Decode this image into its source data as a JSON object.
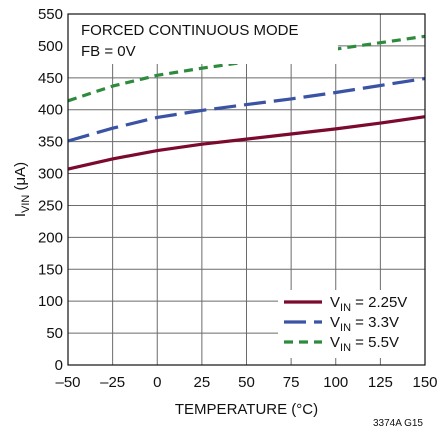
{
  "chart_data": {
    "type": "line",
    "xlabel": "TEMPERATURE (°C)",
    "ylabel": {
      "main": "I",
      "sub": "VIN",
      "unit": " (μA)"
    },
    "xlim": [
      -50,
      150
    ],
    "ylim": [
      0,
      550
    ],
    "x_ticks": [
      -50,
      -25,
      0,
      25,
      50,
      75,
      100,
      125,
      150
    ],
    "x_tick_labels": [
      "–50",
      "–25",
      "0",
      "25",
      "50",
      "75",
      "100",
      "125",
      "150"
    ],
    "y_ticks": [
      0,
      50,
      100,
      150,
      200,
      250,
      300,
      350,
      400,
      450,
      500,
      550
    ],
    "grid": true,
    "annotations": [
      "FORCED CONTINUOUS MODE",
      "FB = 0V"
    ],
    "legend_position": "bottom-right",
    "series": [
      {
        "name": "V_IN = 2.25V",
        "label_main": "V",
        "label_sub": "IN",
        "label_tail": " = 2.25V",
        "color": "#7b0a2e",
        "dash": "solid",
        "x": [
          -50,
          -25,
          0,
          25,
          50,
          75,
          100,
          125,
          150
        ],
        "y": [
          307,
          323,
          336,
          346,
          354,
          362,
          370,
          379,
          389
        ]
      },
      {
        "name": "V_IN = 3.3V",
        "label_main": "V",
        "label_sub": "IN",
        "label_tail": " = 3.3V",
        "color": "#3a53a4",
        "dash": "long-dash",
        "x": [
          -50,
          -25,
          0,
          25,
          50,
          75,
          100,
          125,
          150
        ],
        "y": [
          351,
          371,
          388,
          399,
          408,
          417,
          427,
          438,
          449
        ]
      },
      {
        "name": "V_IN = 5.5V",
        "label_main": "V",
        "label_sub": "IN",
        "label_tail": " = 5.5V",
        "color": "#2e8b3e",
        "dash": "short-dash",
        "x": [
          -50,
          -25,
          0,
          25,
          50,
          75,
          100,
          125,
          150
        ],
        "y": [
          414,
          437,
          454,
          465,
          475,
          485,
          495,
          505,
          515
        ]
      }
    ],
    "figure_id": "3374A G15"
  }
}
